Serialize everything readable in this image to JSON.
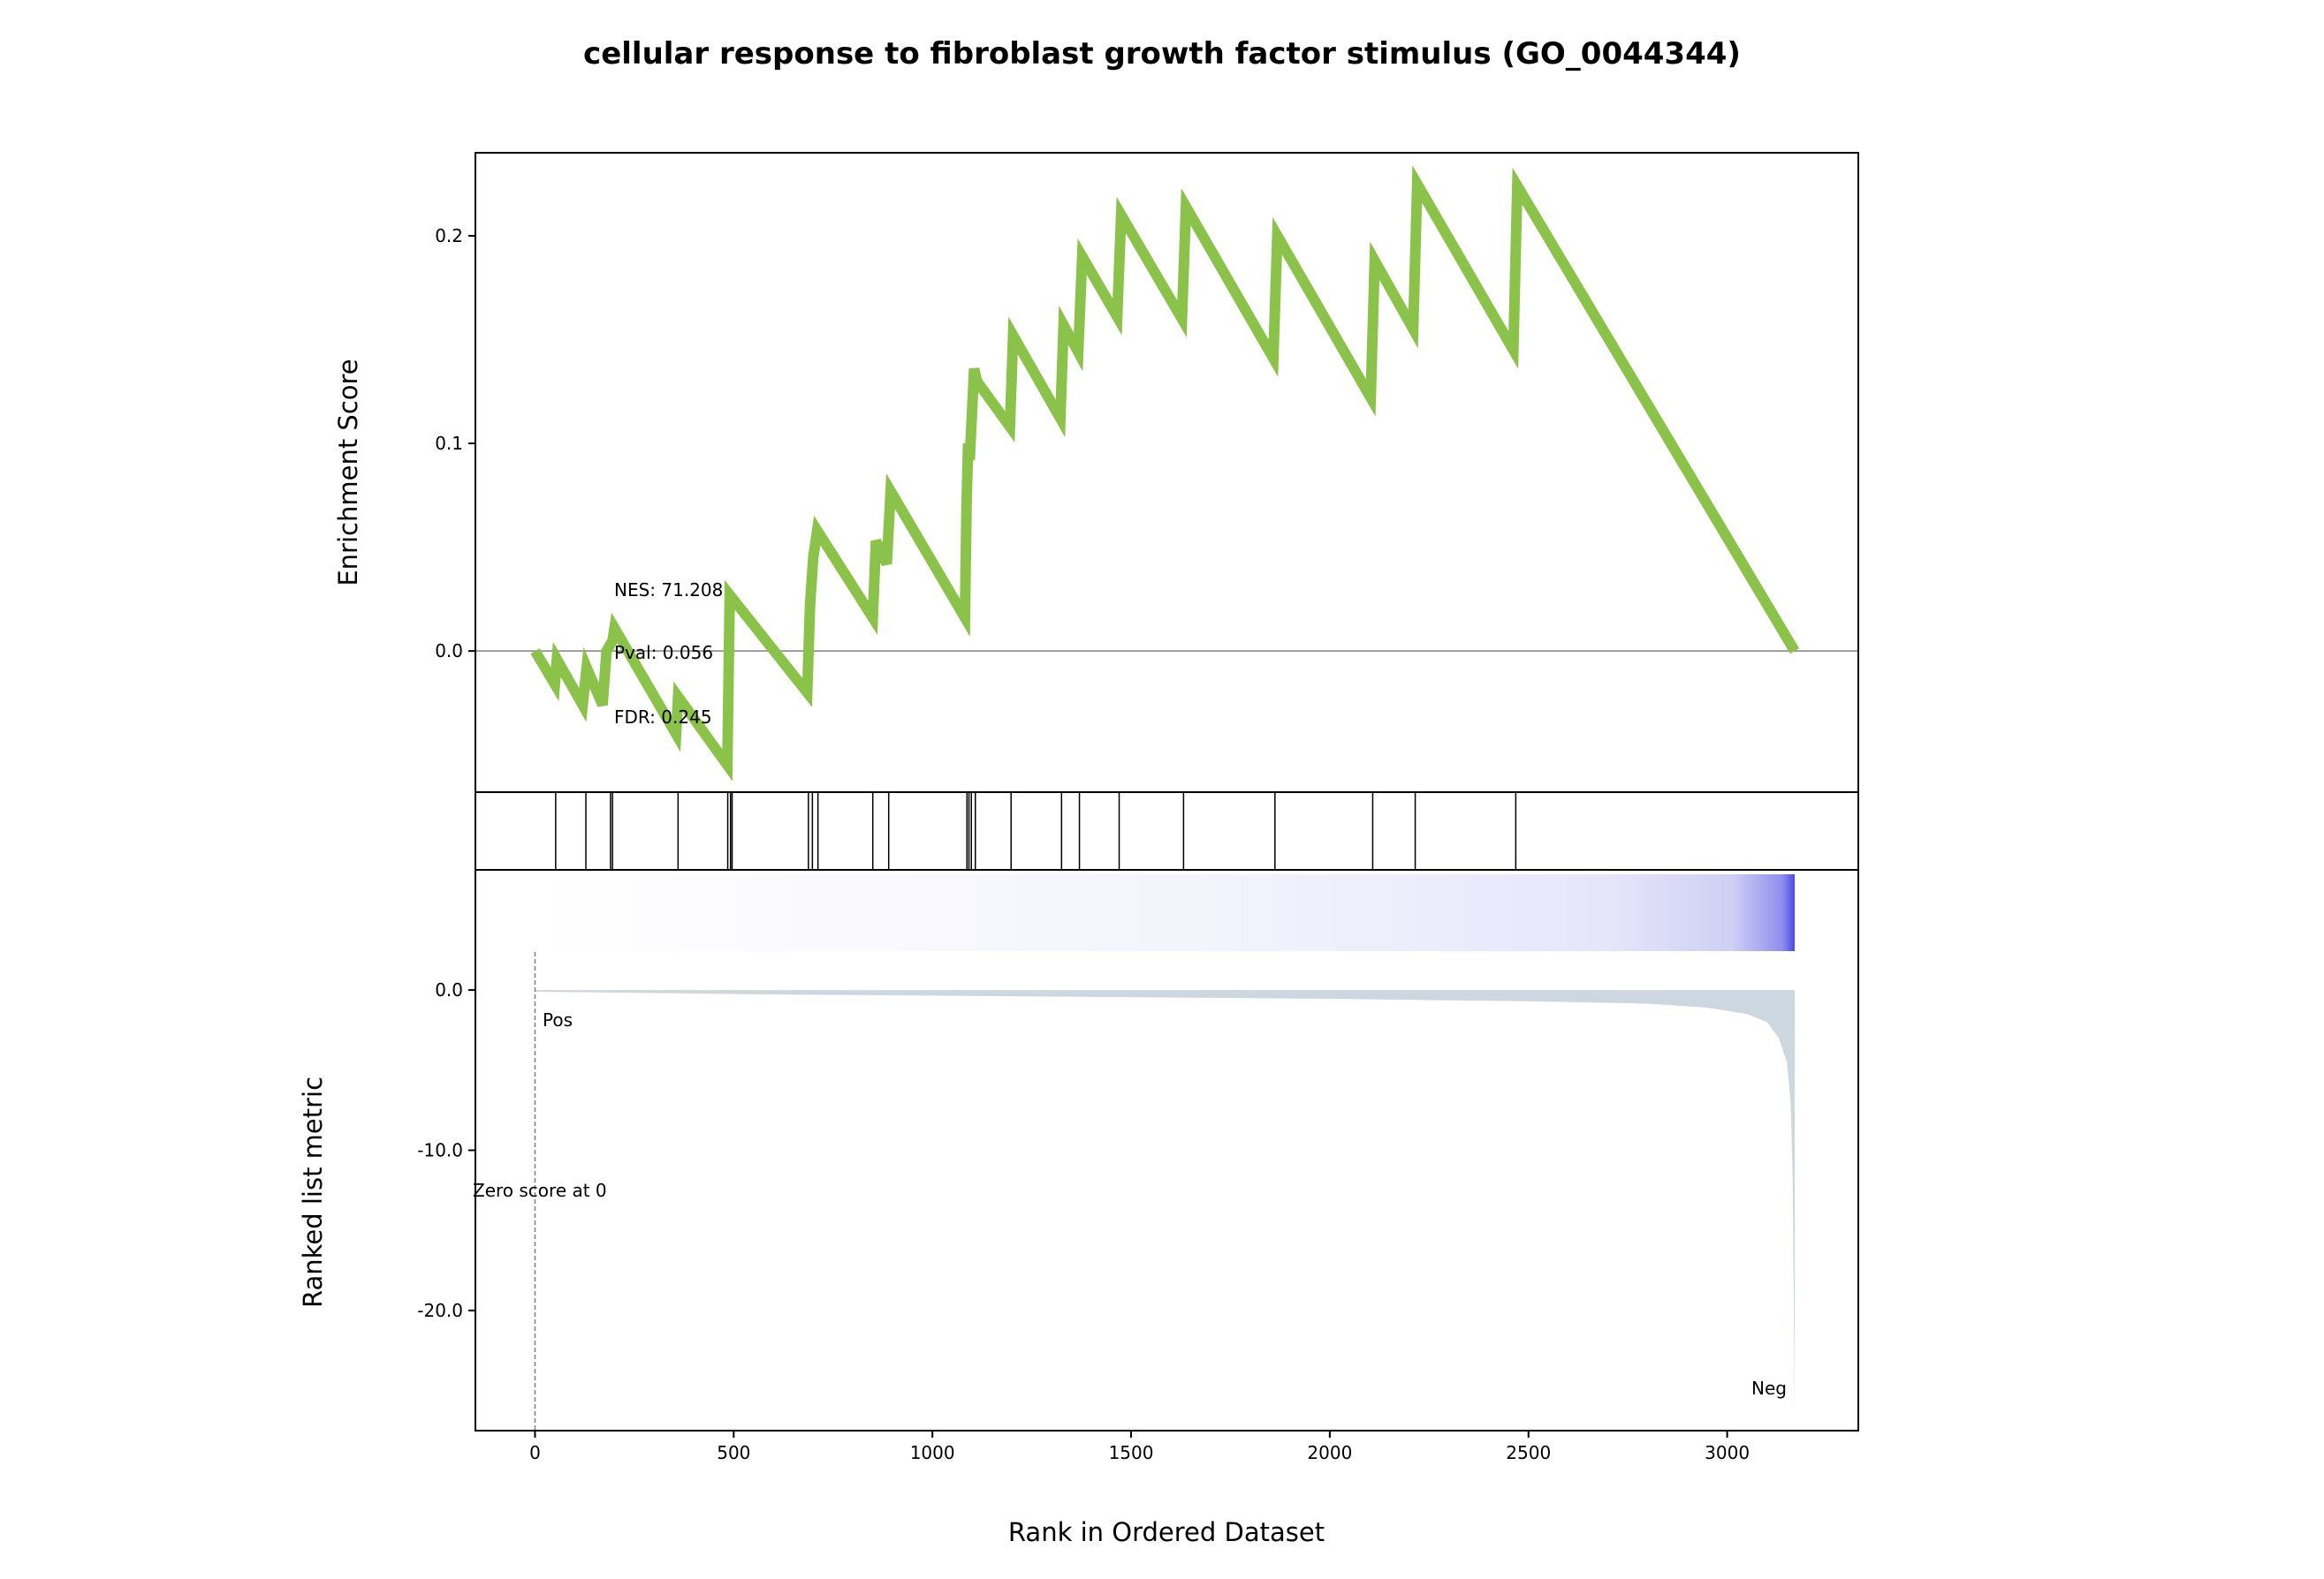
{
  "chart_data": {
    "type": "line",
    "title": "cellular response to fibroblast growth factor stimulus (GO_0044344)",
    "xlabel": "Rank in Ordered Dataset",
    "xlim": [
      -150,
      3330
    ],
    "x_ticks": [
      0,
      500,
      1000,
      1500,
      2000,
      2500,
      3000
    ],
    "x_tick_labels": [
      "0",
      "500",
      "1000",
      "1500",
      "2000",
      "2500",
      "3000"
    ],
    "enrichment": {
      "ylabel": "Enrichment Score",
      "ylim": [
        -0.068,
        0.24
      ],
      "y_ticks": [
        0.0,
        0.1,
        0.2
      ],
      "y_tick_labels": [
        "0.0",
        "0.1",
        "0.2"
      ],
      "line_color": "#8bc34a",
      "x": [
        0,
        50,
        55,
        120,
        130,
        170,
        180,
        195,
        200,
        355,
        360,
        484,
        490,
        685,
        692,
        700,
        710,
        850,
        858,
        885,
        895,
        1082,
        1086,
        1090,
        1094,
        1105,
        1112,
        1195,
        1203,
        1322,
        1330,
        1367,
        1377,
        1465,
        1475,
        1628,
        1638,
        1858,
        1868,
        2103,
        2113,
        2210,
        2220,
        2462,
        2472,
        3170
      ],
      "y": [
        0.0,
        -0.016,
        -0.004,
        -0.026,
        -0.008,
        -0.026,
        0.0,
        0.005,
        0.011,
        -0.04,
        -0.022,
        -0.055,
        0.027,
        -0.02,
        0.022,
        0.045,
        0.058,
        0.016,
        0.053,
        0.042,
        0.077,
        0.016,
        0.07,
        0.1,
        0.092,
        0.136,
        0.13,
        0.108,
        0.152,
        0.112,
        0.157,
        0.144,
        0.19,
        0.161,
        0.21,
        0.16,
        0.214,
        0.141,
        0.2,
        0.122,
        0.188,
        0.155,
        0.225,
        0.145,
        0.224,
        0.0
      ]
    },
    "hits": [
      52,
      128,
      190,
      195,
      360,
      485,
      492,
      496,
      688,
      698,
      712,
      850,
      890,
      1087,
      1092,
      1098,
      1108,
      1198,
      1325,
      1370,
      1470,
      1632,
      1862,
      2108,
      2215,
      2468
    ],
    "ranked": {
      "ylabel": "Ranked list metric",
      "ylim": [
        -27.5,
        7.5
      ],
      "y_ticks": [
        0,
        -10,
        -20
      ],
      "y_tick_labels": [
        "0.0",
        "-10.0",
        "-20.0"
      ],
      "fill_color": "#cdd7df",
      "x": [
        0,
        500,
        1000,
        1500,
        2000,
        2500,
        2800,
        2950,
        3050,
        3100,
        3130,
        3150,
        3160,
        3165,
        3170
      ],
      "y": [
        -0.1,
        -0.25,
        -0.35,
        -0.45,
        -0.55,
        -0.7,
        -0.85,
        -1.1,
        -1.5,
        -2.0,
        -3.0,
        -4.5,
        -7.0,
        -12.0,
        -26.5
      ]
    },
    "annotations": {
      "nes": "NES: 71.208",
      "pval": "Pval: 0.056",
      "fdr": "FDR: 0.245",
      "pos": "Pos",
      "neg": "Neg",
      "zero": "Zero score at 0"
    },
    "colors": {
      "pos": "#ff0000",
      "neg": "#0000ff",
      "gradient_end": "#4a4ae6"
    }
  }
}
